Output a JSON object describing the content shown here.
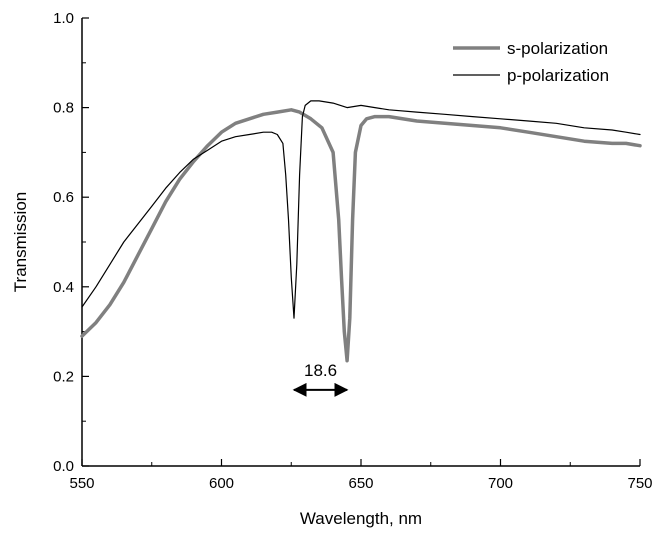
{
  "chart_data": {
    "type": "line",
    "title": "",
    "xlabel": "Wavelength, nm",
    "ylabel": "Transmission",
    "xlim": [
      550,
      750
    ],
    "ylim": [
      0.0,
      1.0
    ],
    "xticks": [
      550,
      600,
      650,
      700,
      750
    ],
    "xtick_labels": [
      "550",
      "600",
      "650",
      "700",
      "750"
    ],
    "yticks": [
      0.0,
      0.2,
      0.4,
      0.6,
      0.8,
      1.0
    ],
    "ytick_labels": [
      "0.0",
      "0.2",
      "0.4",
      "0.6",
      "0.8",
      "1.0"
    ],
    "grid": false,
    "legend_position": "top-right",
    "series": [
      {
        "name": "s-polarization",
        "color": "#808080",
        "style": "thick",
        "x": [
          550,
          555,
          560,
          565,
          570,
          575,
          580,
          585,
          590,
          595,
          600,
          605,
          610,
          615,
          620,
          625,
          628,
          632,
          636,
          640,
          642,
          643,
          644,
          645,
          646,
          647,
          648,
          650,
          652,
          655,
          660,
          670,
          680,
          690,
          700,
          710,
          720,
          730,
          740,
          745,
          750
        ],
        "y": [
          0.29,
          0.32,
          0.36,
          0.41,
          0.47,
          0.53,
          0.59,
          0.64,
          0.68,
          0.715,
          0.745,
          0.765,
          0.775,
          0.785,
          0.79,
          0.795,
          0.79,
          0.775,
          0.755,
          0.7,
          0.55,
          0.42,
          0.3,
          0.235,
          0.33,
          0.55,
          0.7,
          0.76,
          0.775,
          0.78,
          0.78,
          0.77,
          0.765,
          0.76,
          0.755,
          0.745,
          0.735,
          0.725,
          0.72,
          0.72,
          0.715
        ]
      },
      {
        "name": "p-polarization",
        "color": "#000000",
        "style": "thin",
        "x": [
          550,
          555,
          560,
          565,
          570,
          575,
          580,
          585,
          590,
          595,
          600,
          605,
          610,
          615,
          618,
          620,
          622,
          623,
          624,
          625,
          626,
          627,
          628,
          629,
          630,
          632,
          635,
          640,
          645,
          650,
          655,
          660,
          670,
          680,
          690,
          700,
          710,
          720,
          730,
          740,
          745,
          750
        ],
        "y": [
          0.355,
          0.4,
          0.45,
          0.5,
          0.54,
          0.58,
          0.62,
          0.655,
          0.685,
          0.705,
          0.725,
          0.735,
          0.74,
          0.745,
          0.745,
          0.74,
          0.72,
          0.65,
          0.55,
          0.42,
          0.33,
          0.45,
          0.65,
          0.78,
          0.805,
          0.815,
          0.815,
          0.81,
          0.8,
          0.805,
          0.8,
          0.795,
          0.79,
          0.785,
          0.78,
          0.775,
          0.77,
          0.765,
          0.755,
          0.75,
          0.745,
          0.74
        ]
      }
    ],
    "annotations": [
      {
        "text": "18.6",
        "type": "double-arrow",
        "x_from": 626,
        "x_to": 645,
        "y": 0.17
      }
    ]
  }
}
